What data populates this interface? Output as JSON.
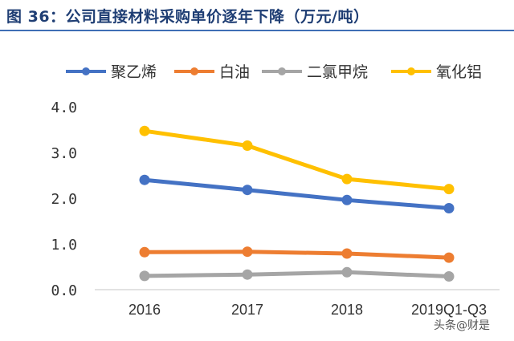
{
  "figure": {
    "title": "图 36：公司直接材料采购单价逐年下降（万元/吨）",
    "watermark": "头条@财是"
  },
  "chart_data": {
    "type": "line",
    "categories": [
      "2016",
      "2017",
      "2018",
      "2019Q1-Q3"
    ],
    "series": [
      {
        "name": "聚乙烯",
        "color": "#4472c4",
        "values": [
          2.4,
          2.18,
          1.96,
          1.78
        ]
      },
      {
        "name": "白油",
        "color": "#ed7d31",
        "values": [
          0.82,
          0.83,
          0.79,
          0.7
        ]
      },
      {
        "name": "二氯甲烷",
        "color": "#a5a5a5",
        "values": [
          0.3,
          0.33,
          0.38,
          0.29
        ]
      },
      {
        "name": "氧化铝",
        "color": "#ffc000",
        "values": [
          3.47,
          3.15,
          2.42,
          2.2
        ]
      }
    ],
    "yticks": [
      "0.0",
      "1.0",
      "2.0",
      "3.0",
      "4.0"
    ],
    "ylim": [
      0,
      4
    ],
    "grid": false,
    "legend": "top"
  }
}
